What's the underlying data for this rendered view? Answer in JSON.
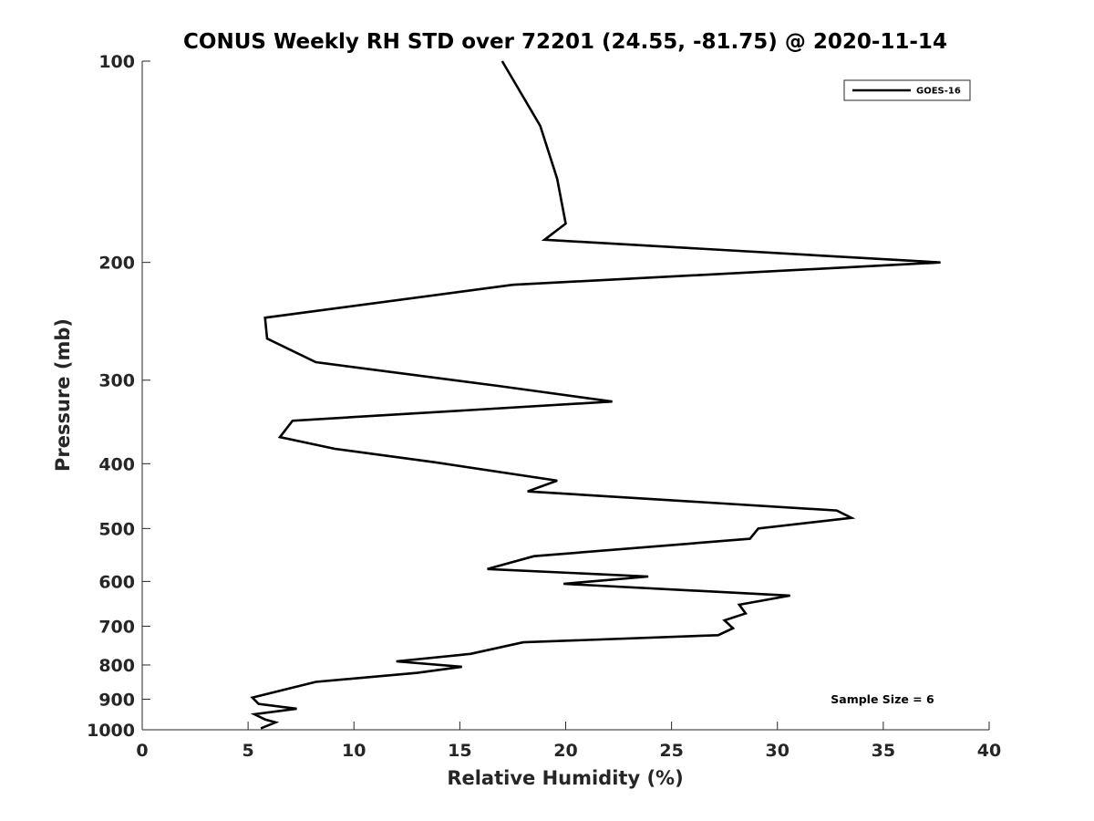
{
  "chart_data": {
    "type": "line",
    "title": "CONUS Weekly RH STD over 72201 (24.55, -81.75) @ 2020-11-14",
    "xlabel": "Relative Humidity (%)",
    "ylabel": "Pressure (mb)",
    "xlim": [
      0,
      40
    ],
    "ylim": [
      100,
      1000
    ],
    "yscale": "log",
    "y_reversed": true,
    "x_ticks": [
      "0",
      "5",
      "10",
      "15",
      "20",
      "25",
      "30",
      "35",
      "40"
    ],
    "y_ticks": [
      "100",
      "200",
      "300",
      "400",
      "500",
      "600",
      "700",
      "800",
      "900",
      "1000"
    ],
    "grid": false,
    "legend": {
      "position": "top-right",
      "entries": [
        "GOES-16"
      ]
    },
    "annotation": "Sample Size = 6",
    "colors": {
      "line": "#000000",
      "axes": "#262626"
    },
    "series": [
      {
        "name": "GOES-16",
        "points": [
          [
            17.0,
            100
          ],
          [
            18.8,
            125
          ],
          [
            19.6,
            150
          ],
          [
            20.0,
            175
          ],
          [
            19.0,
            185
          ],
          [
            37.7,
            200
          ],
          [
            17.5,
            216
          ],
          [
            5.8,
            242
          ],
          [
            5.9,
            260
          ],
          [
            8.2,
            282
          ],
          [
            16.8,
            306
          ],
          [
            22.2,
            323
          ],
          [
            7.1,
            345
          ],
          [
            6.5,
            365
          ],
          [
            9.1,
            380
          ],
          [
            13.8,
            398
          ],
          [
            19.6,
            424
          ],
          [
            18.2,
            440
          ],
          [
            32.8,
            470
          ],
          [
            33.5,
            482
          ],
          [
            29.1,
            500
          ],
          [
            28.7,
            518
          ],
          [
            18.5,
            550
          ],
          [
            16.3,
            575
          ],
          [
            23.9,
            590
          ],
          [
            19.9,
            605
          ],
          [
            30.6,
            630
          ],
          [
            28.2,
            650
          ],
          [
            28.5,
            670
          ],
          [
            27.5,
            686
          ],
          [
            27.9,
            705
          ],
          [
            27.2,
            722
          ],
          [
            18.0,
            740
          ],
          [
            15.5,
            770
          ],
          [
            12.0,
            790
          ],
          [
            15.1,
            805
          ],
          [
            13.0,
            822
          ],
          [
            8.2,
            848
          ],
          [
            5.2,
            895
          ],
          [
            5.5,
            915
          ],
          [
            7.3,
            930
          ],
          [
            5.3,
            948
          ],
          [
            5.8,
            965
          ],
          [
            6.3,
            975
          ],
          [
            5.6,
            995
          ]
        ]
      }
    ]
  }
}
